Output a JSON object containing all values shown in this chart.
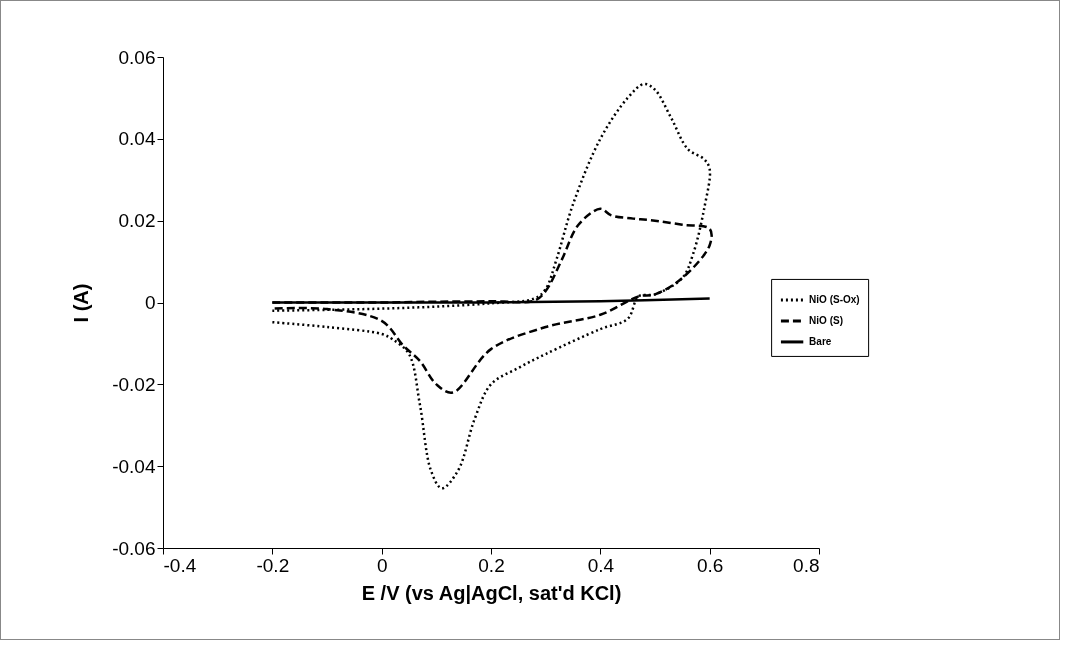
{
  "chart_data": {
    "type": "line",
    "xlabel": "E /V (vs Ag|AgCl, sat'd KCl)",
    "ylabel": "I (A)",
    "xlim": [
      -0.4,
      0.8
    ],
    "ylim": [
      -0.06,
      0.06
    ],
    "xticks": [
      -0.4,
      -0.2,
      0,
      0.2,
      0.4,
      0.6,
      0.8
    ],
    "yticks": [
      -0.06,
      -0.04,
      -0.02,
      0,
      0.02,
      0.04,
      0.06
    ],
    "grid": false,
    "legend": "right",
    "marker": "none",
    "series": [
      {
        "name": "NiO (S-Ox)",
        "color": "#000000",
        "line_style": "dotted",
        "x": [
          -0.2,
          -0.1,
          0,
          0.1,
          0.2,
          0.28,
          0.3,
          0.32,
          0.35,
          0.4,
          0.45,
          0.48,
          0.5,
          0.53,
          0.56,
          0.59,
          0.6,
          0.59,
          0.57,
          0.55,
          0.5,
          0.47,
          0.45,
          0.4,
          0.3,
          0.25,
          0.2,
          0.17,
          0.14,
          0.11,
          0.09,
          0.07,
          0.05,
          0.02,
          0,
          -0.1,
          -0.2
        ],
        "values": [
          -0.002,
          -0.0018,
          -0.0015,
          -0.001,
          -0.0002,
          0.001,
          0.0033,
          0.0106,
          0.024,
          0.04,
          0.05,
          0.0534,
          0.052,
          0.045,
          0.0375,
          0.035,
          0.0326,
          0.023,
          0.012,
          0.006,
          0.002,
          0.0015,
          -0.004,
          -0.0065,
          -0.0126,
          -0.016,
          -0.02,
          -0.0285,
          -0.041,
          -0.0454,
          -0.041,
          -0.025,
          -0.0126,
          -0.009,
          -0.0077,
          -0.006,
          -0.0048
        ]
      },
      {
        "name": "NiO (S)",
        "color": "#000000",
        "line_style": "dashed",
        "x": [
          -0.2,
          -0.1,
          0,
          0.1,
          0.2,
          0.28,
          0.3,
          0.33,
          0.36,
          0.4,
          0.42,
          0.46,
          0.5,
          0.55,
          0.6,
          0.6,
          0.55,
          0.5,
          0.47,
          0.4,
          0.3,
          0.2,
          0.13,
          0.1,
          0.07,
          0.04,
          0,
          -0.1,
          -0.2
        ],
        "values": [
          0,
          0,
          0,
          0.0002,
          0.0003,
          0.0005,
          0.0028,
          0.0106,
          0.019,
          0.0229,
          0.0213,
          0.0205,
          0.02,
          0.019,
          0.018,
          0.014,
          0.006,
          0.002,
          0.0015,
          -0.003,
          -0.006,
          -0.0114,
          -0.022,
          -0.02,
          -0.0143,
          -0.0106,
          -0.0045,
          -0.0016,
          -0.0015
        ]
      },
      {
        "name": "Bare",
        "color": "#000000",
        "line_style": "solid",
        "x": [
          -0.2,
          0,
          0.2,
          0.4,
          0.6
        ],
        "values": [
          0,
          0,
          0,
          0.0003,
          0.001
        ]
      }
    ]
  }
}
